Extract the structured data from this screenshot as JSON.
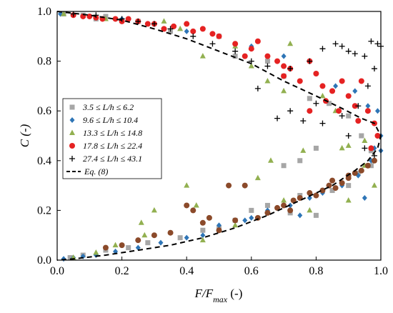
{
  "chart_data": {
    "type": "scatter",
    "xlabel": "F/F",
    "xlabel_sub": "max",
    "xlabel_suffix": " (-)",
    "ylabel": "C (-)",
    "xlim": [
      0,
      1
    ],
    "ylim": [
      0,
      1
    ],
    "x_ticks": [
      "0.0",
      "0.2",
      "0.4",
      "0.6",
      "0.8",
      "1.0"
    ],
    "y_ticks": [
      "0.0",
      "0.2",
      "0.4",
      "0.6",
      "0.8",
      "1.0"
    ],
    "grid": false,
    "legend_position": "center-left",
    "series": [
      {
        "name": "3.5 ≤ L/h ≤ 6.2",
        "marker": "square",
        "color": "#a6a6a6",
        "points": [
          [
            0.02,
            0.99
          ],
          [
            0.08,
            0.985
          ],
          [
            0.12,
            0.97
          ],
          [
            0.15,
            0.98
          ],
          [
            0.25,
            0.96
          ],
          [
            0.35,
            0.92
          ],
          [
            0.5,
            0.9
          ],
          [
            0.55,
            0.82
          ],
          [
            0.65,
            0.8
          ],
          [
            0.7,
            0.74
          ],
          [
            0.78,
            0.65
          ],
          [
            0.84,
            0.63
          ],
          [
            0.9,
            0.58
          ],
          [
            0.94,
            0.5
          ],
          [
            0.97,
            0.44
          ],
          [
            0.75,
            0.4
          ],
          [
            0.8,
            0.45
          ],
          [
            0.7,
            0.38
          ],
          [
            0.04,
            0.01
          ],
          [
            0.08,
            0.02
          ],
          [
            0.15,
            0.04
          ],
          [
            0.22,
            0.05
          ],
          [
            0.28,
            0.07
          ],
          [
            0.38,
            0.09
          ],
          [
            0.45,
            0.12
          ],
          [
            0.55,
            0.16
          ],
          [
            0.65,
            0.22
          ],
          [
            0.75,
            0.26
          ],
          [
            0.8,
            0.18
          ],
          [
            0.85,
            0.28
          ],
          [
            0.9,
            0.3
          ],
          [
            0.93,
            0.35
          ],
          [
            0.97,
            0.38
          ],
          [
            0.72,
            0.19
          ],
          [
            0.6,
            0.2
          ],
          [
            0.5,
            0.13
          ]
        ]
      },
      {
        "name": "9.6 ≤ L/h ≤ 10.4",
        "marker": "diamond",
        "color": "#2e75b6",
        "points": [
          [
            0.01,
            0.99
          ],
          [
            0.05,
            0.985
          ],
          [
            0.1,
            0.98
          ],
          [
            0.2,
            0.97
          ],
          [
            0.3,
            0.95
          ],
          [
            0.4,
            0.92
          ],
          [
            0.5,
            0.9
          ],
          [
            0.6,
            0.86
          ],
          [
            0.7,
            0.82
          ],
          [
            0.8,
            0.75
          ],
          [
            0.86,
            0.7
          ],
          [
            0.92,
            0.68
          ],
          [
            0.96,
            0.62
          ],
          [
            0.99,
            0.6
          ],
          [
            1.0,
            0.5
          ],
          [
            0.98,
            0.45
          ],
          [
            0.02,
            0.005
          ],
          [
            0.05,
            0.01
          ],
          [
            0.08,
            0.015
          ],
          [
            0.12,
            0.02
          ],
          [
            0.18,
            0.035
          ],
          [
            0.25,
            0.05
          ],
          [
            0.32,
            0.07
          ],
          [
            0.4,
            0.09
          ],
          [
            0.45,
            0.1
          ],
          [
            0.5,
            0.14
          ],
          [
            0.58,
            0.16
          ],
          [
            0.65,
            0.2
          ],
          [
            0.72,
            0.22
          ],
          [
            0.78,
            0.25
          ],
          [
            0.82,
            0.27
          ],
          [
            0.88,
            0.3
          ],
          [
            0.93,
            0.34
          ],
          [
            0.97,
            0.4
          ],
          [
            1.0,
            0.44
          ],
          [
            0.95,
            0.25
          ],
          [
            0.75,
            0.18
          ],
          [
            0.6,
            0.17
          ]
        ]
      },
      {
        "name": "13.3 ≤ L/h ≤ 14.8",
        "marker": "triangle",
        "color": "#92b050",
        "points": [
          [
            0.02,
            0.99
          ],
          [
            0.15,
            0.97
          ],
          [
            0.33,
            0.96
          ],
          [
            0.38,
            0.93
          ],
          [
            0.45,
            0.82
          ],
          [
            0.55,
            0.86
          ],
          [
            0.6,
            0.78
          ],
          [
            0.65,
            0.72
          ],
          [
            0.7,
            0.68
          ],
          [
            0.72,
            0.87
          ],
          [
            0.82,
            0.66
          ],
          [
            0.86,
            0.6
          ],
          [
            0.9,
            0.46
          ],
          [
            0.95,
            0.48
          ],
          [
            0.88,
            0.45
          ],
          [
            0.76,
            0.44
          ],
          [
            0.66,
            0.4
          ],
          [
            0.62,
            0.33
          ],
          [
            0.4,
            0.3
          ],
          [
            0.43,
            0.22
          ],
          [
            0.3,
            0.2
          ],
          [
            0.26,
            0.15
          ],
          [
            0.27,
            0.1
          ],
          [
            0.18,
            0.06
          ],
          [
            0.12,
            0.03
          ],
          [
            0.05,
            0.01
          ],
          [
            0.45,
            0.08
          ],
          [
            0.55,
            0.14
          ],
          [
            0.7,
            0.24
          ],
          [
            0.78,
            0.2
          ],
          [
            0.9,
            0.24
          ],
          [
            0.95,
            0.38
          ],
          [
            0.98,
            0.3
          ]
        ]
      },
      {
        "name": "17.8 ≤ L/h ≤ 22.4",
        "marker": "circle",
        "color": "#e52222",
        "points": [
          [
            0.05,
            0.985
          ],
          [
            0.08,
            0.98
          ],
          [
            0.1,
            0.98
          ],
          [
            0.12,
            0.975
          ],
          [
            0.14,
            0.97
          ],
          [
            0.18,
            0.97
          ],
          [
            0.2,
            0.96
          ],
          [
            0.22,
            0.97
          ],
          [
            0.25,
            0.96
          ],
          [
            0.28,
            0.95
          ],
          [
            0.3,
            0.95
          ],
          [
            0.33,
            0.93
          ],
          [
            0.36,
            0.94
          ],
          [
            0.4,
            0.95
          ],
          [
            0.42,
            0.92
          ],
          [
            0.45,
            0.93
          ],
          [
            0.48,
            0.91
          ],
          [
            0.5,
            0.9
          ],
          [
            0.55,
            0.87
          ],
          [
            0.6,
            0.85
          ],
          [
            0.62,
            0.88
          ],
          [
            0.65,
            0.82
          ],
          [
            0.68,
            0.8
          ],
          [
            0.7,
            0.78
          ],
          [
            0.72,
            0.77
          ],
          [
            0.75,
            0.72
          ],
          [
            0.78,
            0.8
          ],
          [
            0.8,
            0.75
          ],
          [
            0.82,
            0.7
          ],
          [
            0.85,
            0.68
          ],
          [
            0.88,
            0.72
          ],
          [
            0.9,
            0.66
          ],
          [
            0.92,
            0.62
          ],
          [
            0.94,
            0.72
          ],
          [
            0.96,
            0.6
          ],
          [
            0.98,
            0.55
          ],
          [
            0.99,
            0.5
          ],
          [
            0.97,
            0.45
          ],
          [
            0.93,
            0.56
          ],
          [
            0.87,
            0.6
          ],
          [
            0.83,
            0.64
          ],
          [
            0.78,
            0.6
          ],
          [
            0.7,
            0.74
          ],
          [
            0.58,
            0.82
          ]
        ]
      },
      {
        "name": "27.4 ≤ L/h ≤ 43.1",
        "marker": "plus",
        "color": "#000000",
        "points": [
          [
            0.05,
            0.99
          ],
          [
            0.12,
            0.985
          ],
          [
            0.2,
            0.97
          ],
          [
            0.25,
            0.96
          ],
          [
            0.3,
            0.95
          ],
          [
            0.35,
            0.93
          ],
          [
            0.42,
            0.9
          ],
          [
            0.48,
            0.87
          ],
          [
            0.55,
            0.84
          ],
          [
            0.6,
            0.8
          ],
          [
            0.65,
            0.78
          ],
          [
            0.72,
            0.77
          ],
          [
            0.78,
            0.8
          ],
          [
            0.82,
            0.85
          ],
          [
            0.86,
            0.87
          ],
          [
            0.88,
            0.86
          ],
          [
            0.9,
            0.84
          ],
          [
            0.92,
            0.83
          ],
          [
            0.95,
            0.82
          ],
          [
            0.97,
            0.88
          ],
          [
            0.99,
            0.87
          ],
          [
            1.0,
            0.86
          ],
          [
            0.98,
            0.77
          ],
          [
            0.96,
            0.7
          ],
          [
            0.93,
            0.62
          ],
          [
            0.88,
            0.58
          ],
          [
            0.82,
            0.55
          ],
          [
            0.76,
            0.56
          ],
          [
            0.72,
            0.6
          ],
          [
            0.68,
            0.57
          ],
          [
            0.9,
            0.5
          ],
          [
            0.95,
            0.45
          ],
          [
            0.98,
            0.42
          ],
          [
            0.8,
            0.63
          ],
          [
            0.62,
            0.69
          ]
        ]
      },
      {
        "name": "",
        "marker": "circle",
        "color": "#8b4a2a",
        "legend": false,
        "points": [
          [
            0.4,
            0.22
          ],
          [
            0.42,
            0.2
          ],
          [
            0.45,
            0.15
          ],
          [
            0.5,
            0.12
          ],
          [
            0.55,
            0.16
          ],
          [
            0.58,
            0.3
          ],
          [
            0.62,
            0.17
          ],
          [
            0.65,
            0.19
          ],
          [
            0.68,
            0.21
          ],
          [
            0.7,
            0.22
          ],
          [
            0.73,
            0.24
          ],
          [
            0.75,
            0.25
          ],
          [
            0.78,
            0.27
          ],
          [
            0.8,
            0.26
          ],
          [
            0.82,
            0.28
          ],
          [
            0.84,
            0.3
          ],
          [
            0.86,
            0.29
          ],
          [
            0.88,
            0.31
          ],
          [
            0.9,
            0.33
          ],
          [
            0.92,
            0.35
          ],
          [
            0.94,
            0.36
          ],
          [
            0.96,
            0.38
          ],
          [
            0.98,
            0.4
          ],
          [
            0.35,
            0.11
          ],
          [
            0.3,
            0.1
          ],
          [
            0.25,
            0.08
          ],
          [
            0.2,
            0.06
          ],
          [
            0.15,
            0.05
          ],
          [
            0.47,
            0.17
          ],
          [
            0.53,
            0.3
          ],
          [
            0.85,
            0.32
          ],
          [
            0.9,
            0.34
          ],
          [
            0.72,
            0.2
          ]
        ]
      }
    ],
    "curve": {
      "name": "Eq. (8)",
      "style": "dashed",
      "color": "#000000",
      "points": [
        [
          0.0,
          1.0
        ],
        [
          0.1,
          0.985
        ],
        [
          0.2,
          0.965
        ],
        [
          0.3,
          0.93
        ],
        [
          0.4,
          0.89
        ],
        [
          0.5,
          0.84
        ],
        [
          0.6,
          0.79
        ],
        [
          0.7,
          0.72
        ],
        [
          0.8,
          0.66
        ],
        [
          0.88,
          0.61
        ],
        [
          0.94,
          0.57
        ],
        [
          0.98,
          0.55
        ],
        [
          1.0,
          0.5
        ],
        [
          0.99,
          0.45
        ],
        [
          0.96,
          0.4
        ],
        [
          0.92,
          0.36
        ],
        [
          0.85,
          0.3
        ],
        [
          0.75,
          0.24
        ],
        [
          0.65,
          0.18
        ],
        [
          0.55,
          0.13
        ],
        [
          0.45,
          0.09
        ],
        [
          0.35,
          0.06
        ],
        [
          0.25,
          0.04
        ],
        [
          0.15,
          0.02
        ],
        [
          0.05,
          0.005
        ],
        [
          0.0,
          0.0
        ]
      ]
    }
  }
}
